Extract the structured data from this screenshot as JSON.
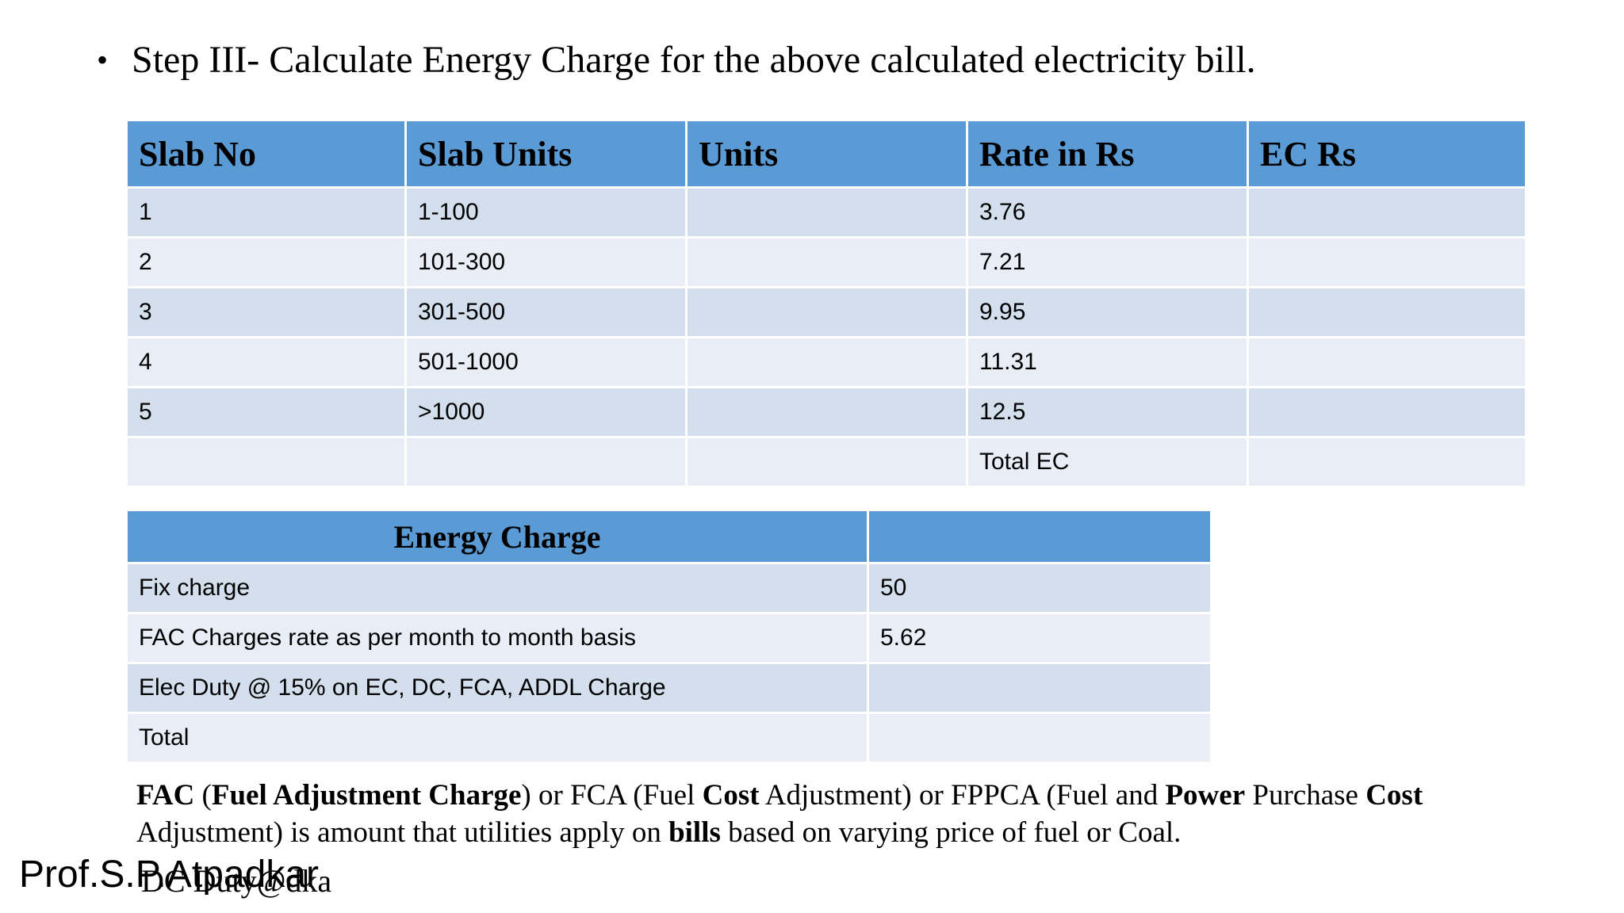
{
  "colors": {
    "background": "#FFFFFF",
    "header_blue": "#5B9BD5",
    "row_dark": "#D3DFEC",
    "row_light": "#E9EEF6",
    "text": "#000000"
  },
  "title": {
    "bullet": "•",
    "text": "Step III- Calculate Energy Charge for the above calculated electricity bill."
  },
  "slab_table": {
    "headers": [
      "Slab No",
      "Slab Units",
      "Units",
      "Rate in Rs",
      "EC Rs"
    ],
    "rows": [
      [
        "1",
        "1-100",
        "",
        "3.76",
        ""
      ],
      [
        "2",
        "101-300",
        "",
        "7.21",
        ""
      ],
      [
        "3",
        "301-500",
        "",
        "9.95",
        ""
      ],
      [
        "4",
        "501-1000",
        "",
        "11.31",
        ""
      ],
      [
        "5",
        ">1000",
        "",
        "12.5",
        ""
      ],
      [
        "",
        "",
        "",
        "Total EC",
        ""
      ]
    ]
  },
  "energy_table": {
    "header": "Energy Charge",
    "rows": [
      [
        "Fix charge",
        "50"
      ],
      [
        "FAC Charges rate as per month to month basis",
        "5.62"
      ],
      [
        "Elec Duty @ 15% on EC, DC, FCA, ADDL Charge",
        ""
      ],
      [
        "Total",
        ""
      ]
    ]
  },
  "note": {
    "segments": [
      {
        "text": "FAC",
        "bold": true
      },
      {
        "text": " (",
        "bold": false
      },
      {
        "text": "Fuel Adjustment Charge",
        "bold": true
      },
      {
        "text": ") or FCA (Fuel ",
        "bold": false
      },
      {
        "text": "Cost",
        "bold": true
      },
      {
        "text": " Adjustment) or FPPCA (Fuel and ",
        "bold": false
      },
      {
        "text": "Power",
        "bold": true
      },
      {
        "text": " Purchase ",
        "bold": false
      },
      {
        "text": "Cost",
        "bold": true
      },
      {
        "text": " Adjustment) is amount that utilities apply on ",
        "bold": false
      },
      {
        "text": "bills",
        "bold": true
      },
      {
        "text": " based on varying price of fuel or Coal.",
        "bold": false
      }
    ]
  },
  "footer": {
    "author": "Prof.S.P.Atpadkar",
    "overlapped_text": "DC Duty@dka"
  }
}
